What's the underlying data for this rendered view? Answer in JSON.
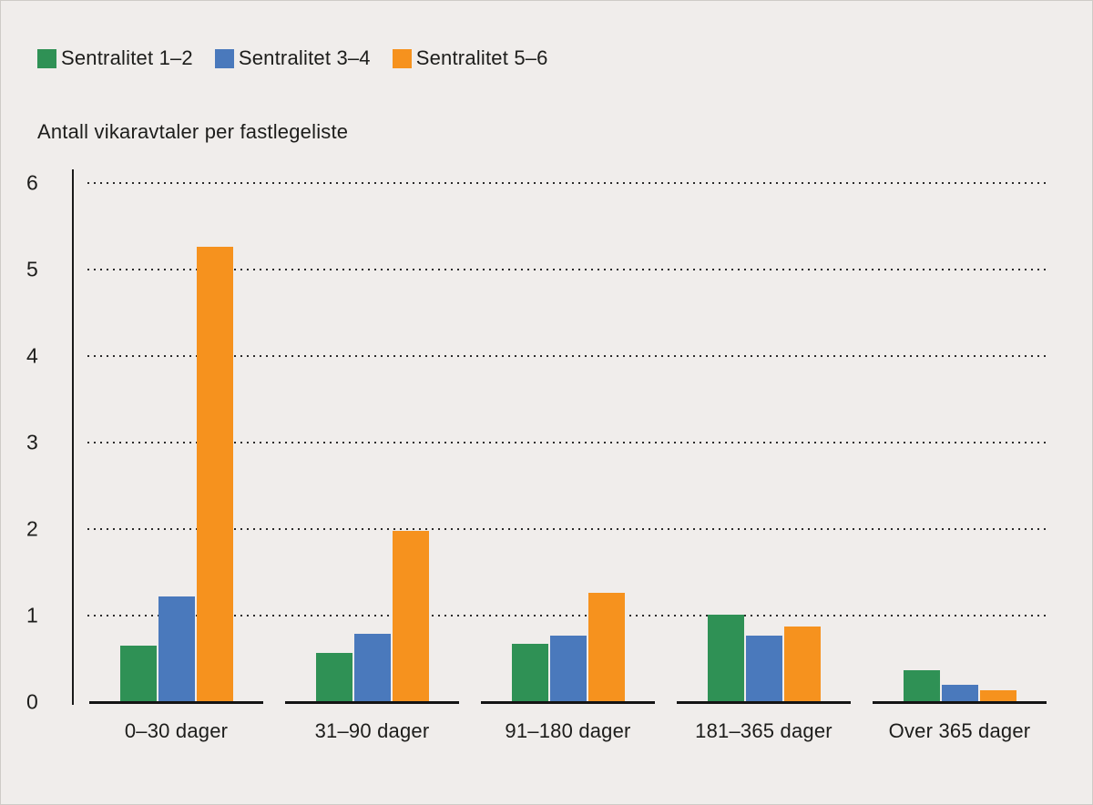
{
  "colors": {
    "background": "#f0edeb",
    "text": "#1d1d1b",
    "axis": "#1a1a1a",
    "gridline": "#2b2b2b",
    "green": "#2f9155",
    "blue": "#4a79bc",
    "orange": "#f6921e"
  },
  "axis_title": "Antall vikaravtaler per fastlegeliste",
  "chart_data": {
    "type": "bar",
    "title": "",
    "xlabel": "",
    "ylabel": "Antall vikaravtaler per fastlegeliste",
    "ylim": [
      0,
      6
    ],
    "yticks": [
      0,
      1,
      2,
      3,
      4,
      5,
      6
    ],
    "grid": "horizontal-dotted",
    "legend_position": "top-left",
    "categories": [
      "0–30 dager",
      "31–90 dager",
      "91–180 dager",
      "181–365 dager",
      "Over 365 dager"
    ],
    "series": [
      {
        "name": "Sentralitet 1–2",
        "color": "#2f9155",
        "values": [
          0.64,
          0.56,
          0.66,
          1.0,
          0.36
        ]
      },
      {
        "name": "Sentralitet 3–4",
        "color": "#4a79bc",
        "values": [
          1.21,
          0.78,
          0.76,
          0.76,
          0.19
        ]
      },
      {
        "name": "Sentralitet 5–6",
        "color": "#f6921e",
        "values": [
          5.25,
          1.97,
          1.25,
          0.86,
          0.13
        ]
      }
    ]
  }
}
